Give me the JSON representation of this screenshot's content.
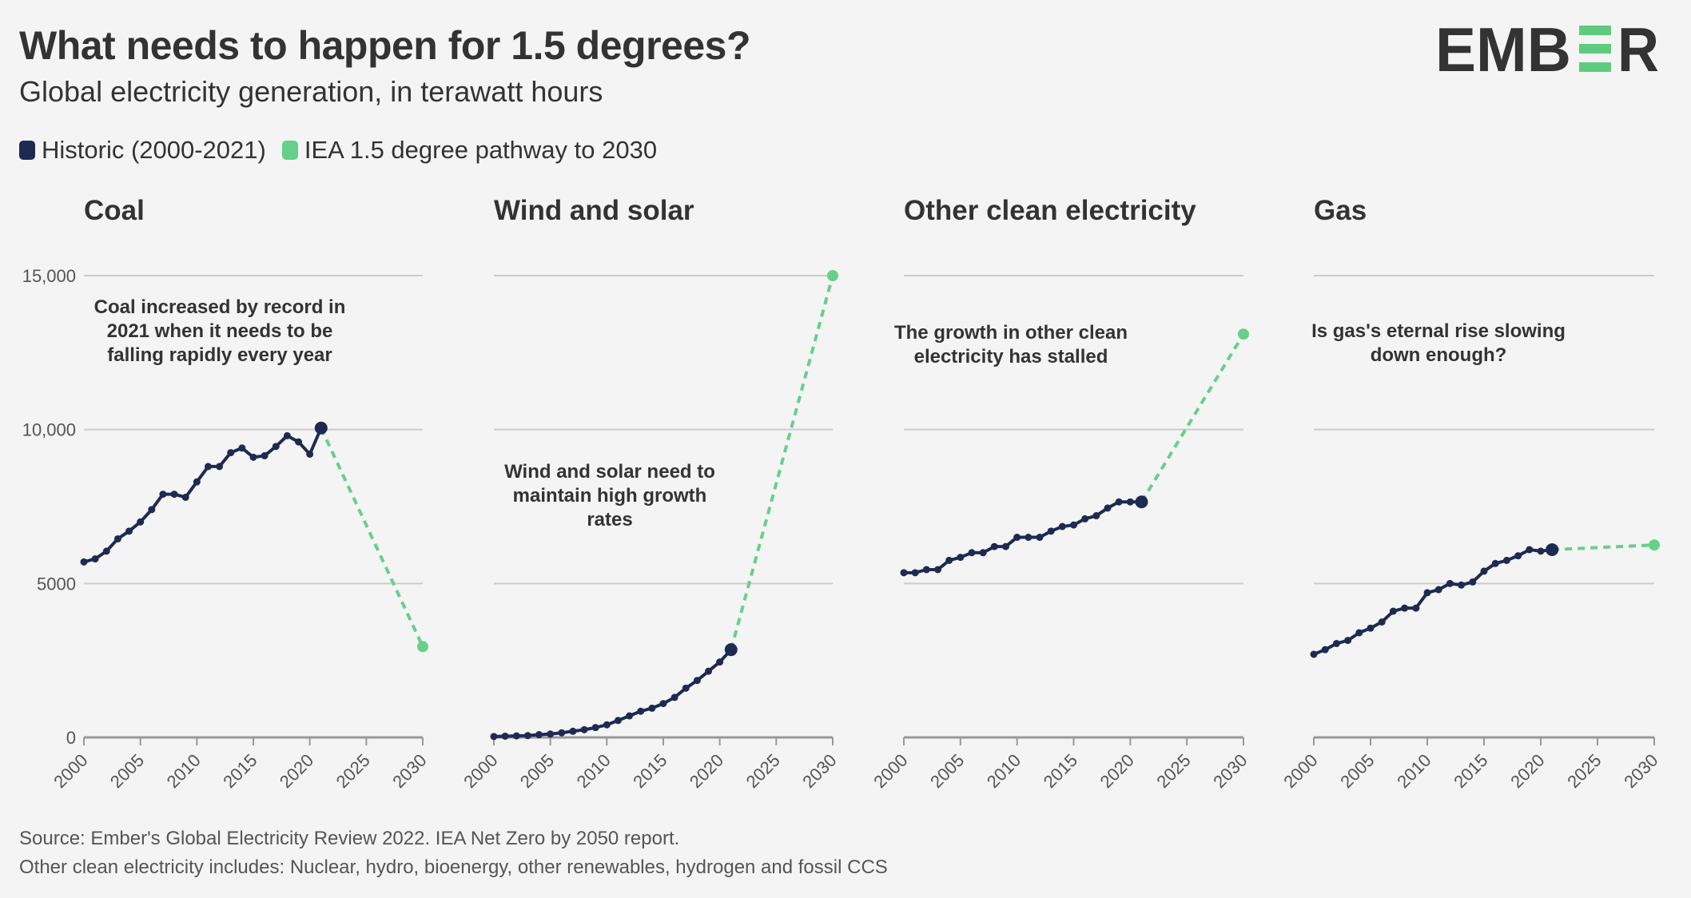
{
  "header": {
    "title": "What needs to happen for 1.5 degrees?",
    "subtitle": "Global electricity generation, in terawatt hours",
    "logo_text": "EMBER"
  },
  "legend": [
    {
      "label": "Historic (2000-2021)",
      "color": "#1f2a52"
    },
    {
      "label": "IEA 1.5 degree pathway to 2030",
      "color": "#66d08a"
    }
  ],
  "footer": {
    "source": "Source: Ember's Global Electricity Review 2022. IEA Net Zero by 2050 report.",
    "note": "Other clean electricity includes: Nuclear, hydro, bioenergy, other renewables, hydrogen and fossil CCS"
  },
  "colors": {
    "historic": "#1f2a52",
    "pathway": "#66d08a",
    "grid": "#cccccc",
    "axis": "#999999",
    "brand_green": "#5fcb7f",
    "brand_dark": "#333333"
  },
  "chart_data": [
    {
      "type": "line",
      "title": "Coal",
      "annotation": [
        "Coal increased by record in",
        "2021 when it needs to be",
        "falling rapidly every year"
      ],
      "xlim": [
        2000,
        2030
      ],
      "ylim": [
        0,
        15000
      ],
      "x_ticks": [
        "2000",
        "2005",
        "2010",
        "2015",
        "2020",
        "2025",
        "2030"
      ],
      "y_ticks": [
        "0",
        "5000",
        "10,000",
        "15,000"
      ],
      "grid": true,
      "series": [
        {
          "name": "Historic (2000-2021)",
          "x": [
            2000,
            2001,
            2002,
            2003,
            2004,
            2005,
            2006,
            2007,
            2008,
            2009,
            2010,
            2011,
            2012,
            2013,
            2014,
            2015,
            2016,
            2017,
            2018,
            2019,
            2020,
            2021
          ],
          "values": [
            5700,
            5800,
            6050,
            6450,
            6700,
            7000,
            7400,
            7900,
            7900,
            7800,
            8300,
            8800,
            8800,
            9250,
            9400,
            9100,
            9150,
            9450,
            9800,
            9600,
            9200,
            10050
          ]
        },
        {
          "name": "IEA 1.5 degree pathway to 2030",
          "x": [
            2021,
            2030
          ],
          "values": [
            10050,
            2950
          ]
        }
      ]
    },
    {
      "type": "line",
      "title": "Wind and solar",
      "annotation": [
        "Wind and solar need to",
        "maintain high growth",
        "rates"
      ],
      "xlim": [
        2000,
        2030
      ],
      "ylim": [
        0,
        15000
      ],
      "x_ticks": [
        "2000",
        "2005",
        "2010",
        "2015",
        "2020",
        "2025",
        "2030"
      ],
      "grid": true,
      "series": [
        {
          "name": "Historic (2000-2021)",
          "x": [
            2000,
            2001,
            2002,
            2003,
            2004,
            2005,
            2006,
            2007,
            2008,
            2009,
            2010,
            2011,
            2012,
            2013,
            2014,
            2015,
            2016,
            2017,
            2018,
            2019,
            2020,
            2021
          ],
          "values": [
            30,
            40,
            50,
            60,
            90,
            110,
            150,
            200,
            250,
            320,
            410,
            550,
            700,
            850,
            950,
            1100,
            1300,
            1600,
            1850,
            2150,
            2450,
            2850
          ]
        },
        {
          "name": "IEA 1.5 degree pathway to 2030",
          "x": [
            2021,
            2030
          ],
          "values": [
            2850,
            15000
          ]
        }
      ]
    },
    {
      "type": "line",
      "title": "Other clean electricity",
      "annotation": [
        "The growth in other clean",
        "electricity has stalled"
      ],
      "xlim": [
        2000,
        2030
      ],
      "ylim": [
        0,
        15000
      ],
      "x_ticks": [
        "2000",
        "2005",
        "2010",
        "2015",
        "2020",
        "2025",
        "2030"
      ],
      "grid": true,
      "series": [
        {
          "name": "Historic (2000-2021)",
          "x": [
            2000,
            2001,
            2002,
            2003,
            2004,
            2005,
            2006,
            2007,
            2008,
            2009,
            2010,
            2011,
            2012,
            2013,
            2014,
            2015,
            2016,
            2017,
            2018,
            2019,
            2020,
            2021
          ],
          "values": [
            5350,
            5350,
            5450,
            5450,
            5750,
            5850,
            6000,
            6000,
            6200,
            6200,
            6500,
            6500,
            6500,
            6700,
            6850,
            6900,
            7100,
            7200,
            7450,
            7650,
            7650,
            7650
          ]
        },
        {
          "name": "IEA 1.5 degree pathway to 2030",
          "x": [
            2021,
            2030
          ],
          "values": [
            7650,
            13100
          ]
        }
      ]
    },
    {
      "type": "line",
      "title": "Gas",
      "annotation": [
        "Is gas's eternal rise slowing",
        "down enough?"
      ],
      "xlim": [
        2000,
        2030
      ],
      "ylim": [
        0,
        15000
      ],
      "x_ticks": [
        "2000",
        "2005",
        "2010",
        "2015",
        "2020",
        "2025",
        "2030"
      ],
      "grid": true,
      "series": [
        {
          "name": "Historic (2000-2021)",
          "x": [
            2000,
            2001,
            2002,
            2003,
            2004,
            2005,
            2006,
            2007,
            2008,
            2009,
            2010,
            2011,
            2012,
            2013,
            2014,
            2015,
            2016,
            2017,
            2018,
            2019,
            2020,
            2021
          ],
          "values": [
            2700,
            2850,
            3050,
            3150,
            3400,
            3550,
            3750,
            4100,
            4200,
            4200,
            4700,
            4800,
            5000,
            4950,
            5050,
            5400,
            5650,
            5750,
            5900,
            6100,
            6050,
            6100
          ]
        },
        {
          "name": "IEA 1.5 degree pathway to 2030",
          "x": [
            2021,
            2030
          ],
          "values": [
            6100,
            6250
          ]
        }
      ]
    }
  ]
}
